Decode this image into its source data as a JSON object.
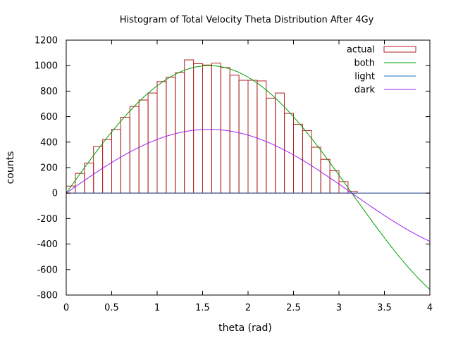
{
  "chart_data": {
    "type": "bar",
    "title": "Histogram of Total Velocity Theta Distribution After 4Gy",
    "xlabel": "theta (rad)",
    "ylabel": "counts",
    "xlim": [
      0,
      4
    ],
    "ylim": [
      -800,
      1200
    ],
    "x_ticks": [
      "0",
      "0.5",
      "1",
      "1.5",
      "2",
      "2.5",
      "3",
      "3.5",
      "4"
    ],
    "y_ticks": [
      "-800",
      "-600",
      "-400",
      "-200",
      "0",
      "200",
      "400",
      "600",
      "800",
      "1000",
      "1200"
    ],
    "grid": false,
    "legend_position": "top-right",
    "histogram": {
      "name": "actual",
      "color": "#b22222",
      "bin_width": 0.1,
      "bin_starts": [
        0.0,
        0.1,
        0.2,
        0.3,
        0.4,
        0.5,
        0.6,
        0.7,
        0.8,
        0.9,
        1.0,
        1.1,
        1.2,
        1.3,
        1.4,
        1.5,
        1.6,
        1.7,
        1.8,
        1.9,
        2.0,
        2.1,
        2.2,
        2.3,
        2.4,
        2.5,
        2.6,
        2.7,
        2.8,
        2.9,
        3.0,
        3.1,
        3.2
      ],
      "values": [
        55,
        155,
        235,
        365,
        420,
        500,
        595,
        680,
        730,
        785,
        875,
        910,
        945,
        1045,
        1015,
        1005,
        1020,
        985,
        925,
        885,
        885,
        880,
        745,
        785,
        625,
        540,
        490,
        360,
        265,
        175,
        90,
        15,
        0
      ]
    },
    "series": [
      {
        "name": "both",
        "color": "#00a000",
        "function": "1000*sin(x)",
        "x_range": [
          0,
          4
        ]
      },
      {
        "name": "light",
        "color": "#1f6fbf",
        "function": "0",
        "x_range": [
          0,
          4
        ]
      },
      {
        "name": "dark",
        "color": "#a020f0",
        "function": "500*sin(x)",
        "x_range": [
          0,
          4
        ]
      }
    ]
  }
}
